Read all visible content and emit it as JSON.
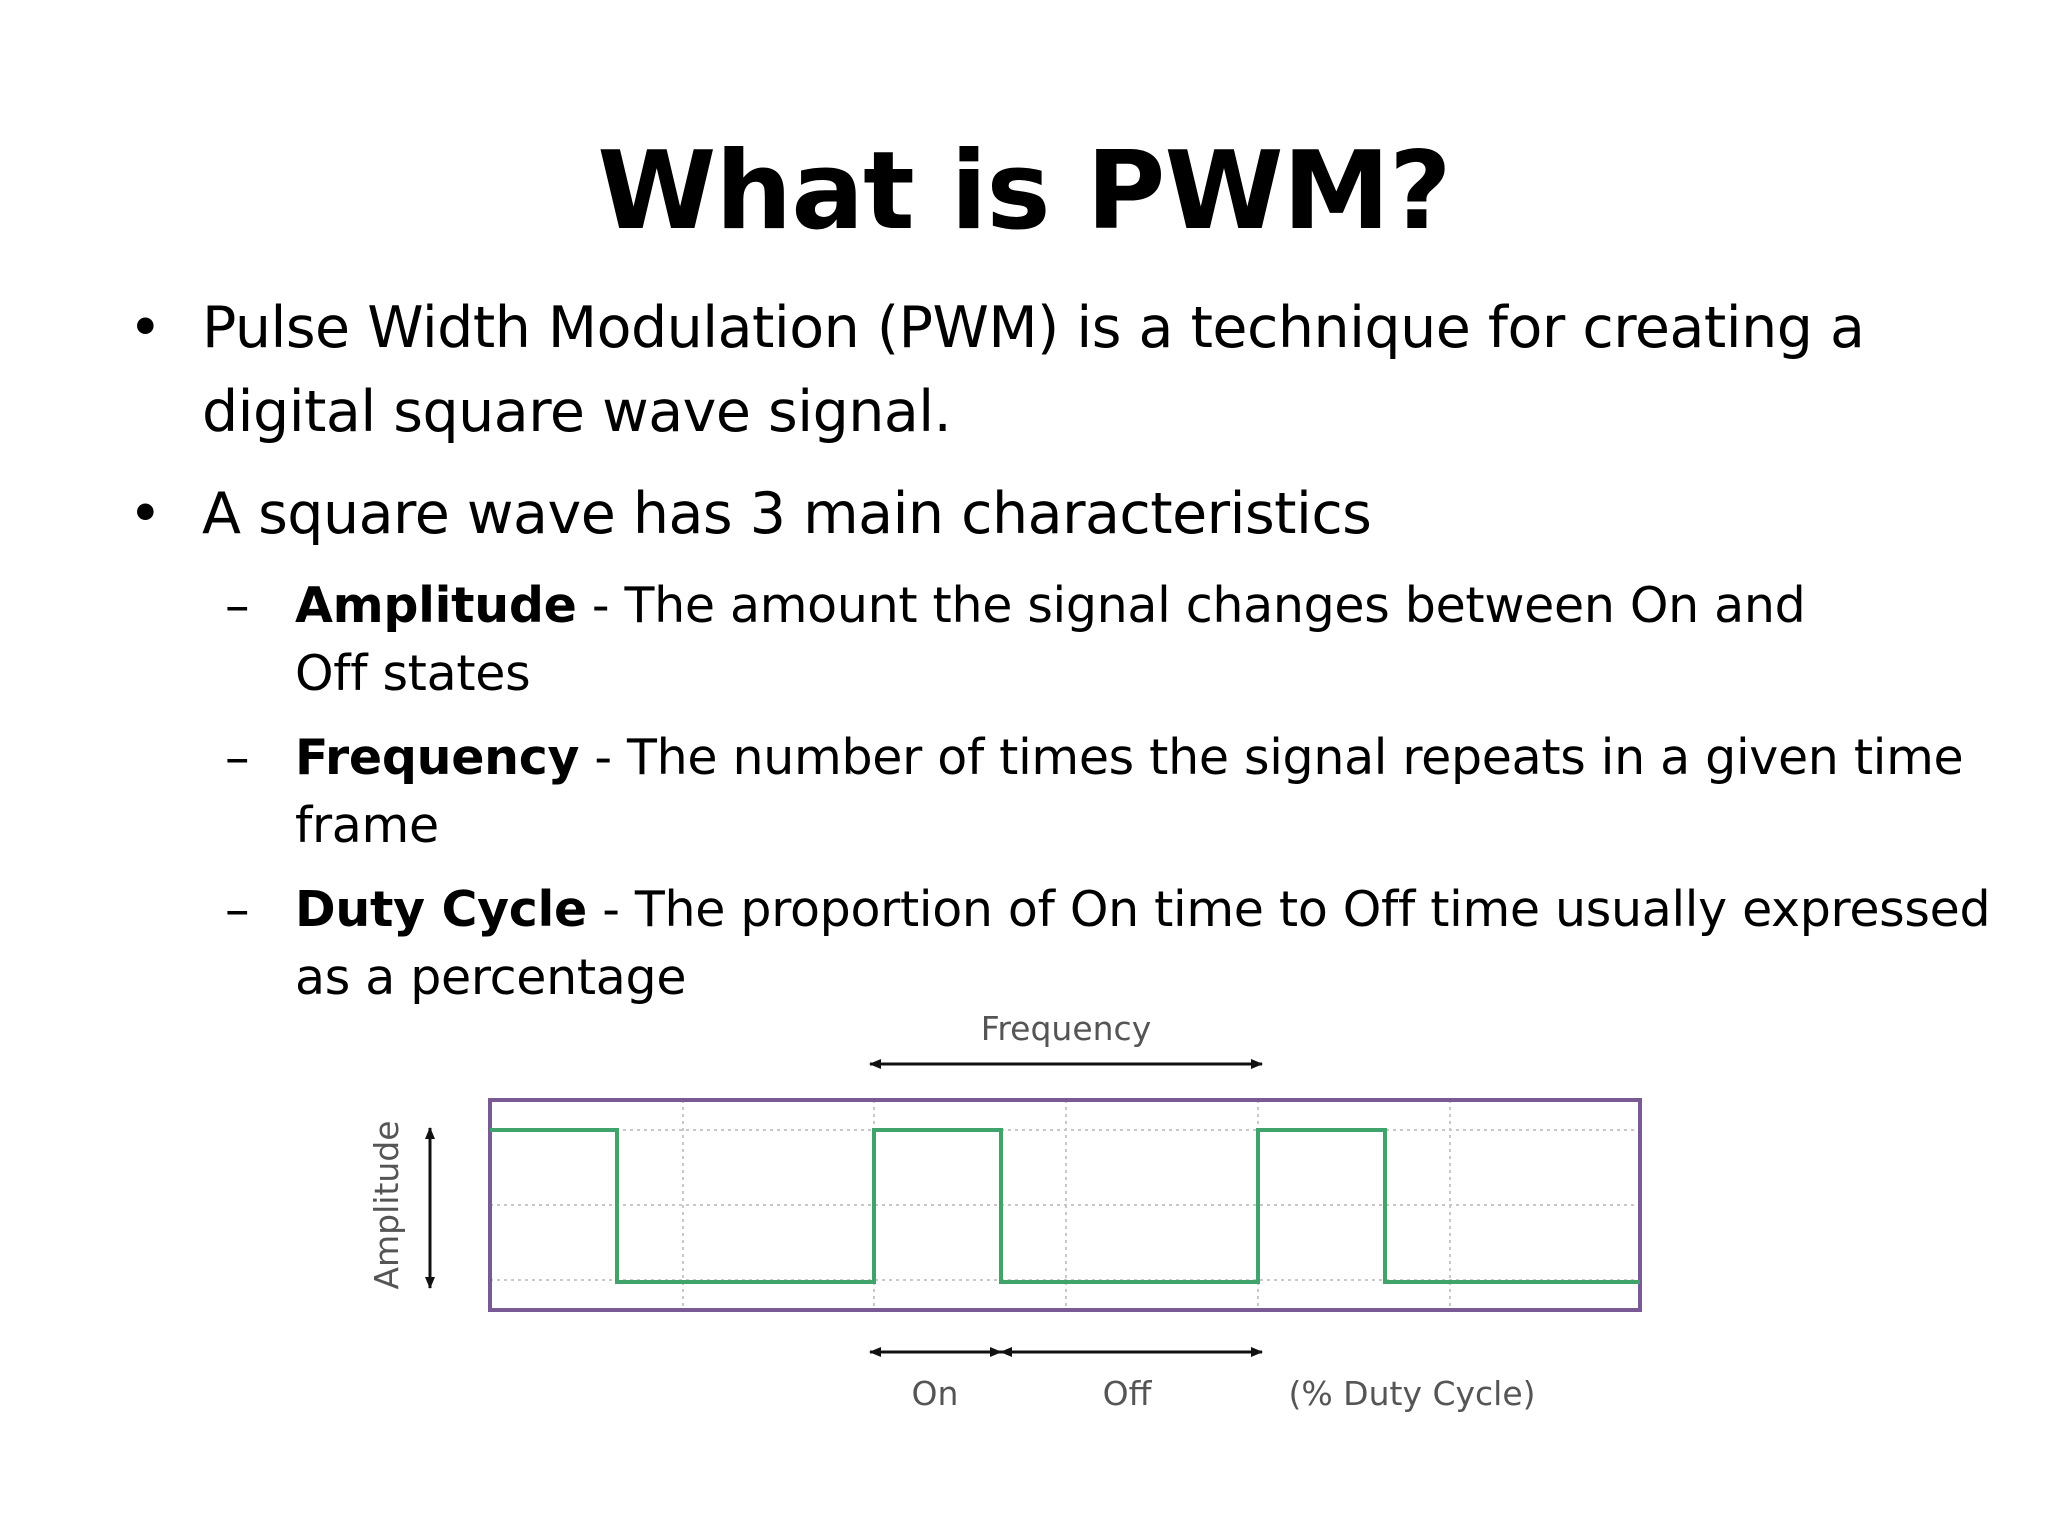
{
  "title": "What is PWM?",
  "bullets": [
    {
      "line1": "Pulse Width Modulation (PWM) is a technique for creating a",
      "line2": "digital square wave signal."
    },
    {
      "line1": "A square wave has 3 main characteristics"
    }
  ],
  "sub_bullets": [
    {
      "term": "Amplitude",
      "line1": " - The amount the signal changes between On and",
      "line2": "Off states"
    },
    {
      "term": "Frequency",
      "line1": " - The number of times the signal repeats in a given time",
      "line2": "frame"
    },
    {
      "term": "Duty Cycle",
      "line1": " -  The proportion of On time to Off time usually expressed",
      "line2": "as a percentage"
    }
  ],
  "bullet_symbol": "•",
  "dash_symbol": "–",
  "diagram": {
    "frequency_label": "Frequency",
    "amplitude_label": "Amplitude",
    "on_label": "On",
    "off_label": "Off",
    "duty_cycle_label": "(% Duty Cycle)",
    "colors": {
      "frame": "#7a5a95",
      "signal": "#3fa36b",
      "grid": "#c8c8c8",
      "text": "#555555",
      "arrow": "#111111"
    },
    "waveform": {
      "duty_cycle_percent": 33,
      "periods_shown": 3
    }
  }
}
